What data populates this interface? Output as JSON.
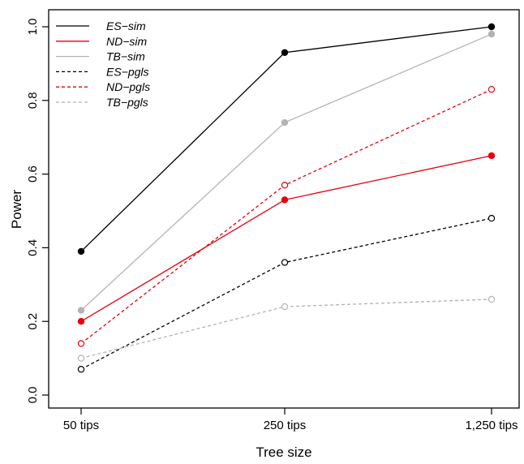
{
  "chart_data": {
    "type": "line",
    "categories": [
      "50 tips",
      "250 tips",
      "1,250 tips"
    ],
    "xlabel": "Tree size",
    "ylabel": "Power",
    "ylim": [
      0,
      1
    ],
    "yticks": [
      "0.0",
      "0.2",
      "0.4",
      "0.6",
      "0.8",
      "1.0"
    ],
    "grid": false,
    "legend_position": "top-left",
    "series": [
      {
        "name": "ES−sim",
        "values": [
          0.39,
          0.93,
          1.0
        ],
        "color": "#000000",
        "dashed": false,
        "filled": true
      },
      {
        "name": "ND−sim",
        "values": [
          0.2,
          0.53,
          0.65
        ],
        "color": "#e8000b",
        "dashed": false,
        "filled": true
      },
      {
        "name": "TB−sim",
        "values": [
          0.23,
          0.74,
          0.98
        ],
        "color": "#b3b3b3",
        "dashed": false,
        "filled": true
      },
      {
        "name": "ES−pgls",
        "values": [
          0.07,
          0.36,
          0.48
        ],
        "color": "#000000",
        "dashed": true,
        "filled": false
      },
      {
        "name": "ND−pgls",
        "values": [
          0.14,
          0.57,
          0.83
        ],
        "color": "#e8000b",
        "dashed": true,
        "filled": false
      },
      {
        "name": "TB−pgls",
        "values": [
          0.1,
          0.24,
          0.26
        ],
        "color": "#b3b3b3",
        "dashed": true,
        "filled": false
      }
    ]
  }
}
